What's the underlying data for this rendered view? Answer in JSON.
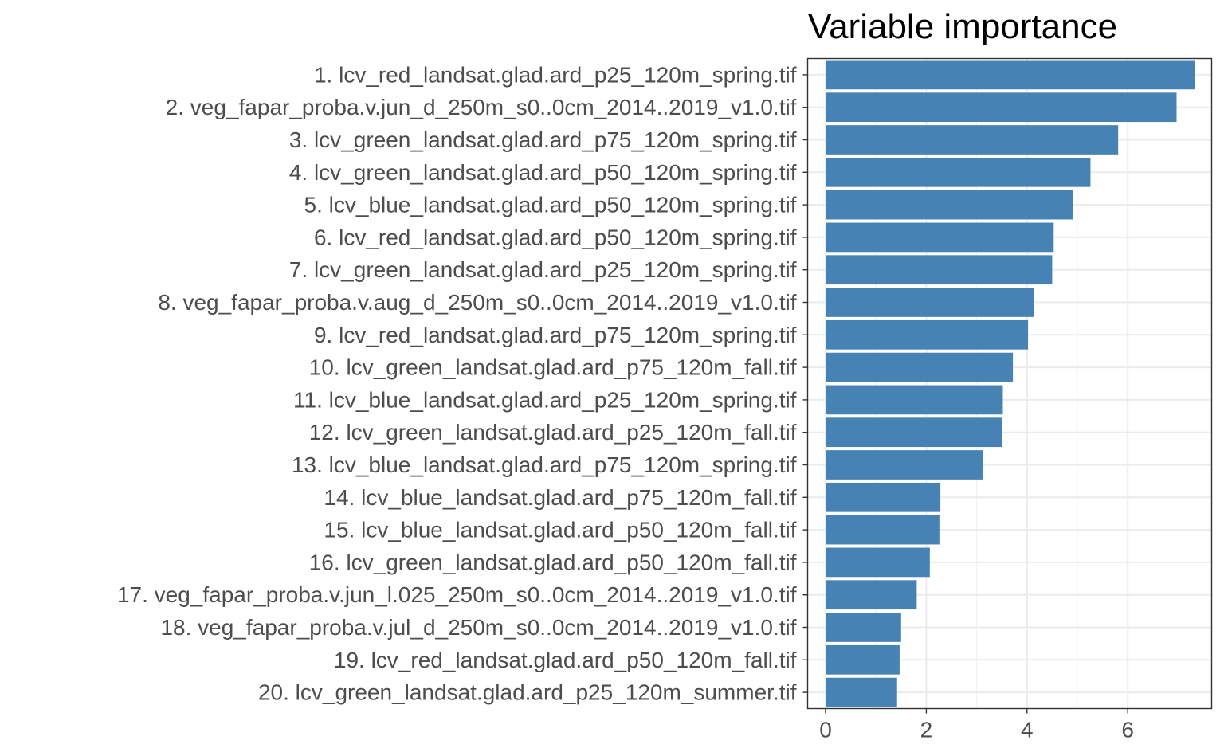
{
  "chart_data": {
    "type": "bar",
    "orientation": "horizontal",
    "title": "Variable importance",
    "xlabel": "",
    "ylabel": "",
    "xlim": [
      0,
      7.65
    ],
    "x_ticks": [
      0,
      2,
      4,
      6
    ],
    "grid": true,
    "bar_color": "#4682b4",
    "categories": [
      "1. lcv_red_landsat.glad.ard_p25_120m_spring.tif",
      "2. veg_fapar_proba.v.jun_d_250m_s0..0cm_2014..2019_v1.0.tif",
      "3. lcv_green_landsat.glad.ard_p75_120m_spring.tif",
      "4. lcv_green_landsat.glad.ard_p50_120m_spring.tif",
      "5. lcv_blue_landsat.glad.ard_p50_120m_spring.tif",
      "6. lcv_red_landsat.glad.ard_p50_120m_spring.tif",
      "7. lcv_green_landsat.glad.ard_p25_120m_spring.tif",
      "8. veg_fapar_proba.v.aug_d_250m_s0..0cm_2014..2019_v1.0.tif",
      "9. lcv_red_landsat.glad.ard_p75_120m_spring.tif",
      "10. lcv_green_landsat.glad.ard_p75_120m_fall.tif",
      "11. lcv_blue_landsat.glad.ard_p25_120m_spring.tif",
      "12. lcv_green_landsat.glad.ard_p25_120m_fall.tif",
      "13. lcv_blue_landsat.glad.ard_p75_120m_spring.tif",
      "14. lcv_blue_landsat.glad.ard_p75_120m_fall.tif",
      "15. lcv_blue_landsat.glad.ard_p50_120m_fall.tif",
      "16. lcv_green_landsat.glad.ard_p50_120m_fall.tif",
      "17. veg_fapar_proba.v.jun_l.025_250m_s0..0cm_2014..2019_v1.0.tif",
      "18. veg_fapar_proba.v.jul_d_250m_s0..0cm_2014..2019_v1.0.tif",
      "19. lcv_red_landsat.glad.ard_p50_120m_fall.tif",
      "20. lcv_green_landsat.glad.ard_p25_120m_summer.tif"
    ],
    "values": [
      7.33,
      6.97,
      5.81,
      5.26,
      4.92,
      4.53,
      4.5,
      4.14,
      4.02,
      3.72,
      3.52,
      3.5,
      3.13,
      2.28,
      2.26,
      2.07,
      1.81,
      1.5,
      1.47,
      1.42
    ]
  }
}
